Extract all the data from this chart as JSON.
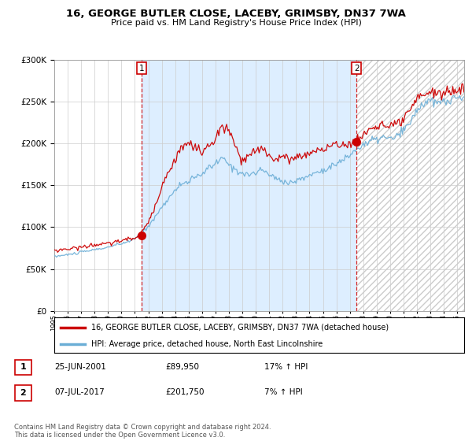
{
  "title": "16, GEORGE BUTLER CLOSE, LACEBY, GRIMSBY, DN37 7WA",
  "subtitle": "Price paid vs. HM Land Registry's House Price Index (HPI)",
  "legend_line1": "16, GEORGE BUTLER CLOSE, LACEBY, GRIMSBY, DN37 7WA (detached house)",
  "legend_line2": "HPI: Average price, detached house, North East Lincolnshire",
  "table_rows": [
    {
      "num": "1",
      "date": "25-JUN-2001",
      "price": "£89,950",
      "hpi": "17% ↑ HPI"
    },
    {
      "num": "2",
      "date": "07-JUL-2017",
      "price": "£201,750",
      "hpi": "7% ↑ HPI"
    }
  ],
  "footnote": "Contains HM Land Registry data © Crown copyright and database right 2024.\nThis data is licensed under the Open Government Licence v3.0.",
  "sale1_date_num": 2001.48,
  "sale1_price": 89950,
  "sale2_date_num": 2017.51,
  "sale2_price": 201750,
  "hpi_color": "#6baed6",
  "price_color": "#cc0000",
  "marker_color": "#cc0000",
  "vline_color": "#cc0000",
  "background_color": "#ffffff",
  "shade_color": "#ddeeff",
  "ylim": [
    0,
    300000
  ],
  "xlim_start": 1995.0,
  "xlim_end": 2025.5,
  "hpi_anchors": {
    "1995.0": 65000,
    "1996.0": 67000,
    "1997.0": 70000,
    "1998.0": 73000,
    "1999.0": 76000,
    "2000.0": 80000,
    "2001.0": 86000,
    "2001.5": 91000,
    "2002.5": 112000,
    "2003.5": 135000,
    "2004.5": 152000,
    "2005.5": 158000,
    "2006.5": 170000,
    "2007.5": 182000,
    "2008.5": 168000,
    "2009.5": 162000,
    "2010.0": 165000,
    "2010.5": 168000,
    "2011.0": 163000,
    "2011.5": 158000,
    "2012.0": 155000,
    "2012.5": 153000,
    "2013.0": 155000,
    "2013.5": 158000,
    "2014.0": 162000,
    "2014.5": 165000,
    "2015.0": 168000,
    "2015.5": 172000,
    "2016.0": 175000,
    "2016.5": 180000,
    "2017.0": 186000,
    "2017.5": 193000,
    "2018.0": 198000,
    "2018.5": 202000,
    "2019.0": 205000,
    "2019.5": 207000,
    "2020.0": 205000,
    "2020.5": 208000,
    "2021.0": 215000,
    "2021.5": 225000,
    "2022.0": 240000,
    "2022.5": 248000,
    "2023.0": 250000,
    "2023.5": 248000,
    "2024.0": 250000,
    "2024.5": 252000,
    "2025.3": 255000
  },
  "red_anchors": {
    "1995.0": 72000,
    "1996.0": 74000,
    "1997.0": 76000,
    "1998.0": 79000,
    "1999.0": 80000,
    "2000.0": 84000,
    "2001.0": 87000,
    "2001.5": 94000,
    "2002.0": 105000,
    "2002.5": 125000,
    "2003.0": 150000,
    "2003.5": 165000,
    "2004.0": 182000,
    "2004.5": 195000,
    "2005.0": 200000,
    "2005.5": 195000,
    "2006.0": 190000,
    "2006.5": 195000,
    "2007.0": 205000,
    "2007.5": 220000,
    "2008.0": 215000,
    "2008.5": 195000,
    "2009.0": 178000,
    "2009.5": 185000,
    "2010.0": 190000,
    "2010.5": 195000,
    "2011.0": 185000,
    "2011.5": 182000,
    "2012.0": 183000,
    "2012.5": 182000,
    "2013.0": 183000,
    "2013.5": 186000,
    "2014.0": 188000,
    "2014.5": 192000,
    "2015.0": 193000,
    "2015.5": 196000,
    "2016.0": 197000,
    "2016.5": 200000,
    "2017.0": 199000,
    "2017.5": 203000,
    "2018.0": 210000,
    "2018.5": 218000,
    "2019.0": 220000,
    "2019.5": 222000,
    "2020.0": 218000,
    "2020.5": 222000,
    "2021.0": 228000,
    "2021.5": 238000,
    "2022.0": 252000,
    "2022.5": 260000,
    "2023.0": 262000,
    "2023.5": 258000,
    "2024.0": 260000,
    "2024.5": 262000,
    "2025.3": 265000
  }
}
